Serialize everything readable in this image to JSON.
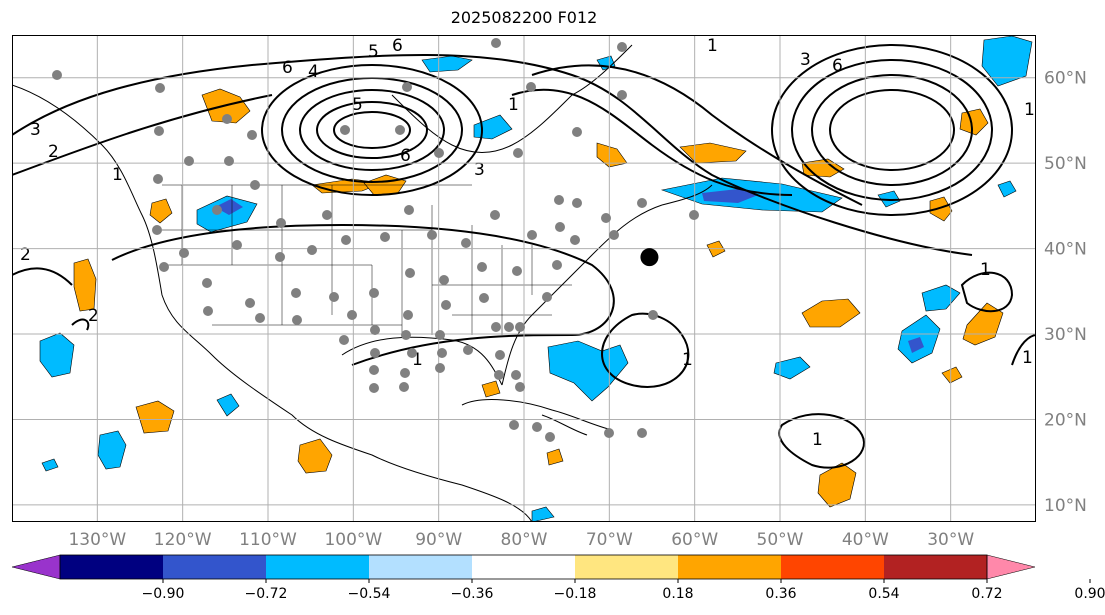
{
  "title": "2025082200 F012",
  "map": {
    "lon_range": [
      -140,
      -20
    ],
    "lat_range": [
      8,
      65
    ],
    "lon_ticks": [
      {
        "value": -130,
        "label": "130°W"
      },
      {
        "value": -120,
        "label": "120°W"
      },
      {
        "value": -110,
        "label": "110°W"
      },
      {
        "value": -100,
        "label": "100°W"
      },
      {
        "value": -90,
        "label": "90°W"
      },
      {
        "value": -80,
        "label": "80°W"
      },
      {
        "value": -70,
        "label": "70°W"
      },
      {
        "value": -60,
        "label": "60°W"
      },
      {
        "value": -50,
        "label": "50°W"
      },
      {
        "value": -40,
        "label": "40°W"
      },
      {
        "value": -30,
        "label": "30°W"
      }
    ],
    "lat_ticks": [
      {
        "value": 10,
        "label": "10°N"
      },
      {
        "value": 20,
        "label": "20°N"
      },
      {
        "value": 30,
        "label": "30°N"
      },
      {
        "value": 40,
        "label": "40°N"
      },
      {
        "value": 50,
        "label": "50°N"
      },
      {
        "value": 60,
        "label": "60°N"
      }
    ],
    "grid": true,
    "contour_labels": [
      "1",
      "2",
      "3",
      "4",
      "5",
      "6"
    ],
    "marker": {
      "lon": -65.3,
      "lat": 39.0
    }
  },
  "colorbar": {
    "colors": [
      "#9933cc",
      "#000080",
      "#3355cc",
      "#00bbff",
      "#b3e0ff",
      "#ffffff",
      "#ffe680",
      "#ffa500",
      "#ff4500",
      "#b22222",
      "#ff88aa"
    ],
    "tick_labels": [
      "−0.90",
      "−0.72",
      "−0.54",
      "−0.36",
      "−0.18",
      "0.18",
      "0.36",
      "0.54",
      "0.72",
      "0.90"
    ]
  }
}
